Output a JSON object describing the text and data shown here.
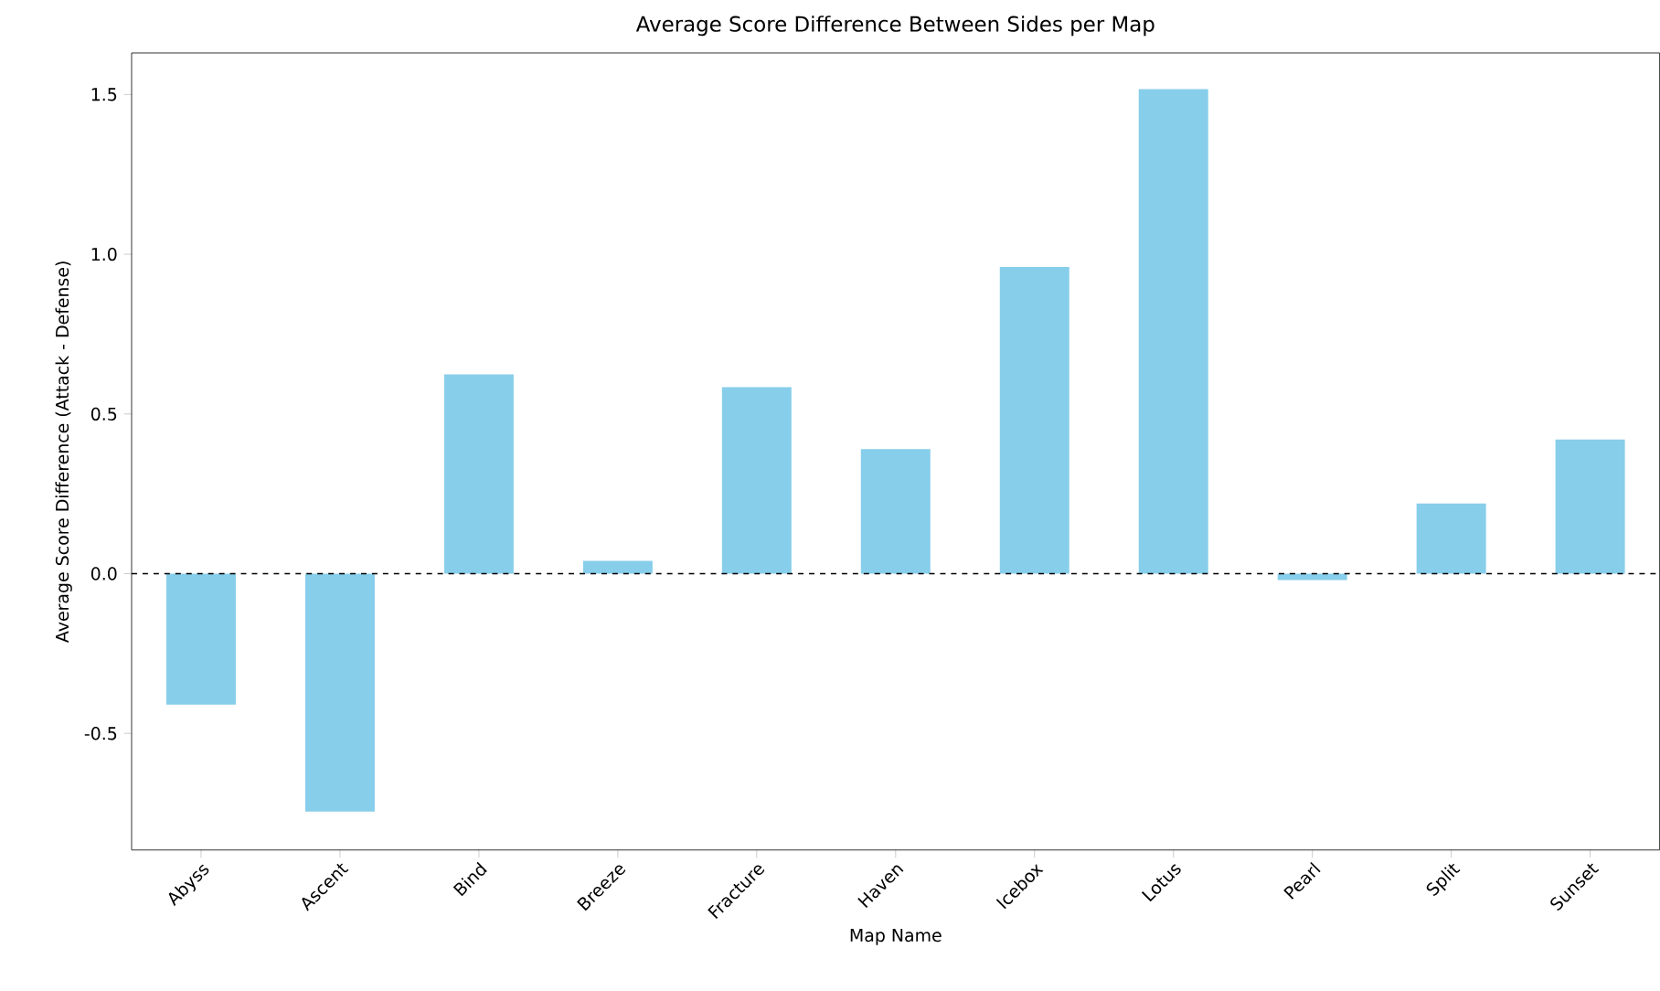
{
  "chart_data": {
    "type": "bar",
    "title": "Average Score Difference Between Sides per Map",
    "xlabel": "Map Name",
    "ylabel": "Average Score Difference (Attack - Defense)",
    "categories": [
      "Abyss",
      "Ascent",
      "Bind",
      "Breeze",
      "Fracture",
      "Haven",
      "Icebox",
      "Lotus",
      "Pearl",
      "Split",
      "Sunset"
    ],
    "values": [
      -0.41,
      -0.745,
      0.624,
      0.04,
      0.584,
      0.39,
      0.96,
      1.517,
      -0.02,
      0.22,
      0.42
    ],
    "color": "#87ceeb",
    "ylim": [
      -0.865,
      1.63
    ],
    "yticks": [
      -0.5,
      {
        "value": 0,
        "label": "0.0"
      },
      0.5,
      {
        "value": 1,
        "label": "1.0"
      },
      1.5
    ],
    "ref_lines": [
      {
        "axis": "y",
        "value": 0,
        "color": "#000000",
        "line_style": "dashed"
      }
    ],
    "grid": false
  }
}
